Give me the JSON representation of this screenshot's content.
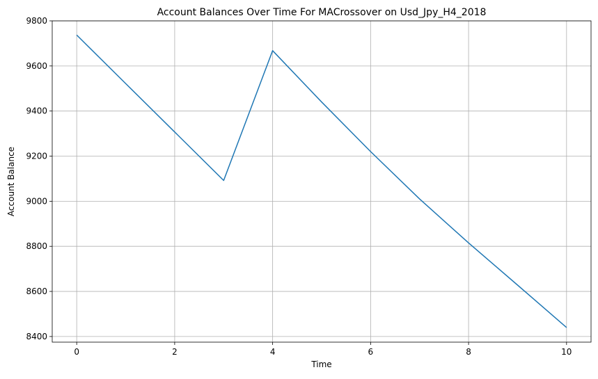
{
  "chart_data": {
    "type": "line",
    "title": "Account Balances Over Time For MACrossover on Usd_Jpy_H4_2018",
    "xlabel": "Time",
    "ylabel": "Account Balance",
    "xlim": [
      -0.5,
      10.5
    ],
    "ylim": [
      8375,
      9800
    ],
    "x_ticks": [
      0,
      2,
      4,
      6,
      8,
      10
    ],
    "y_ticks": [
      8400,
      8600,
      8800,
      9000,
      9200,
      9400,
      9600,
      9800
    ],
    "grid": true,
    "series": [
      {
        "color": "#1f77b4",
        "x": [
          0,
          1,
          2,
          3,
          4,
          5,
          6,
          7,
          8,
          9,
          10
        ],
        "y": [
          9737,
          9522,
          9307,
          9092,
          9668,
          9440,
          9220,
          9010,
          8815,
          8628,
          8440
        ]
      }
    ]
  }
}
